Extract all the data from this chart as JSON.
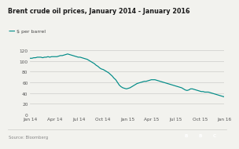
{
  "title": "Brent crude oil prices, January 2014 - January 2016",
  "legend_label": "— $ per barrel",
  "source_text": "Source: Bloomberg",
  "line_color": "#008b87",
  "background_color": "#f2f2ee",
  "plot_bg_color": "#f2f2ee",
  "ylim": [
    0,
    130
  ],
  "yticks": [
    0,
    20,
    40,
    60,
    80,
    100,
    120
  ],
  "xtick_labels": [
    "Jan 14",
    "Apr 14",
    "Jul 14",
    "Oct 14",
    "Jan 15",
    "Apr 15",
    "Jul 15",
    "Oct 15",
    "Jan 16"
  ],
  "prices": [
    105,
    105,
    106,
    106,
    107,
    107,
    107,
    106,
    107,
    107,
    108,
    107,
    108,
    108,
    108,
    108,
    109,
    110,
    110,
    111,
    112,
    113,
    112,
    111,
    110,
    109,
    108,
    107,
    107,
    106,
    105,
    104,
    103,
    101,
    99,
    97,
    95,
    92,
    90,
    87,
    85,
    84,
    82,
    80,
    78,
    75,
    72,
    68,
    65,
    60,
    55,
    52,
    50,
    49,
    48,
    49,
    50,
    52,
    54,
    56,
    58,
    59,
    60,
    61,
    62,
    62,
    63,
    64,
    65,
    65,
    65,
    64,
    63,
    62,
    61,
    60,
    59,
    58,
    57,
    56,
    55,
    54,
    53,
    52,
    51,
    50,
    48,
    46,
    45,
    46,
    48,
    48,
    47,
    46,
    45,
    44,
    43,
    43,
    42,
    42,
    42,
    41,
    40,
    39,
    38,
    37,
    36,
    35,
    34,
    33
  ],
  "bbc_color": "#666666"
}
